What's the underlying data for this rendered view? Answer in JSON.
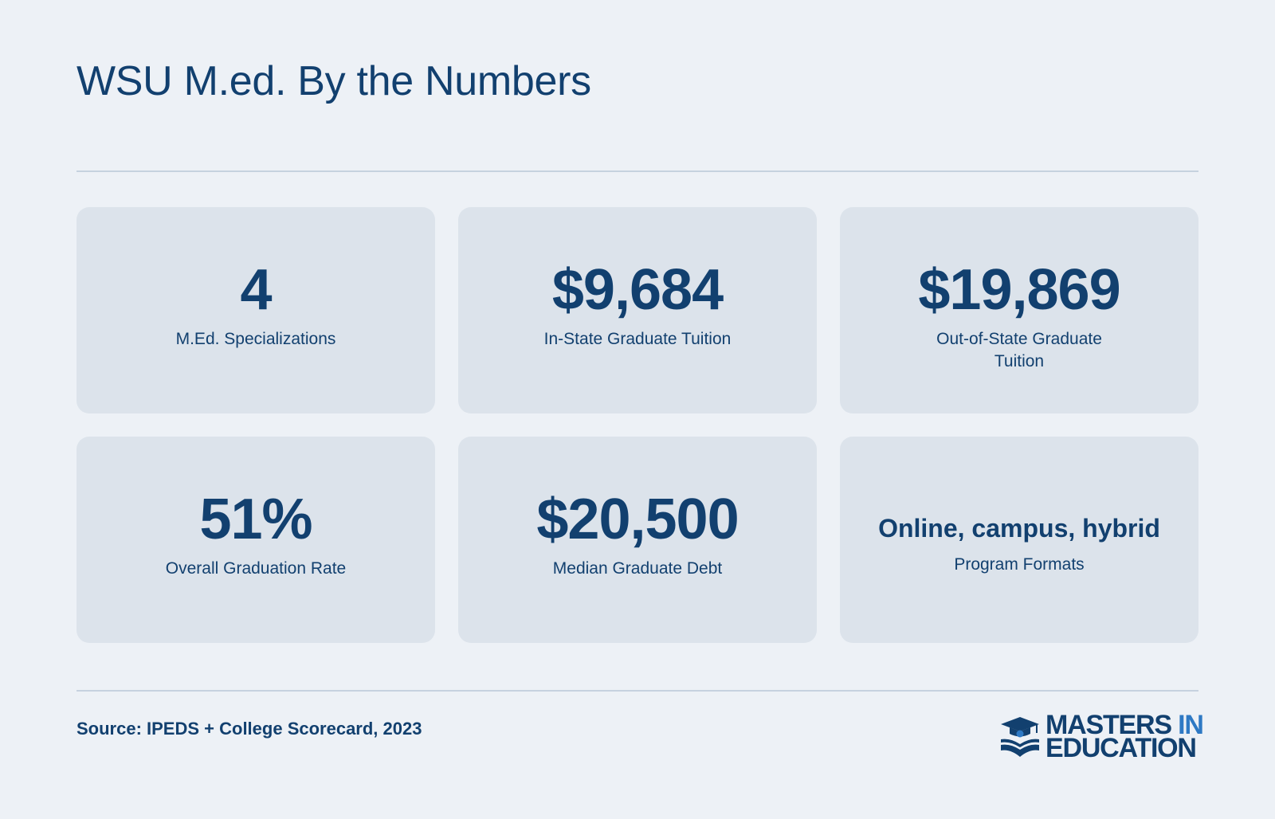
{
  "header": {
    "title": "WSU M.ed. By the Numbers"
  },
  "stats": [
    {
      "value": "4",
      "label": "M.Ed. Specializations"
    },
    {
      "value": "$9,684",
      "label": "In-State Graduate Tuition"
    },
    {
      "value": "$19,869",
      "label": "Out-of-State Graduate Tuition"
    },
    {
      "value": "51%",
      "label": "Overall Graduation Rate"
    },
    {
      "value": "$20,500",
      "label": "Median Graduate Debt"
    },
    {
      "value": "Online, campus, hybrid",
      "label": "Program Formats"
    }
  ],
  "footer": {
    "source": "Source: IPEDS + College Scorecard, 2023",
    "logo": {
      "line1_main": "MASTERS",
      "line1_accent": "IN",
      "line2": "EDUCATION",
      "icon": "graduation-cap-book-icon"
    }
  },
  "colors": {
    "background": "#edf1f6",
    "card": "#dce3eb",
    "primary": "#12406f",
    "accent": "#2e79c4",
    "rule": "#c6d2df"
  }
}
